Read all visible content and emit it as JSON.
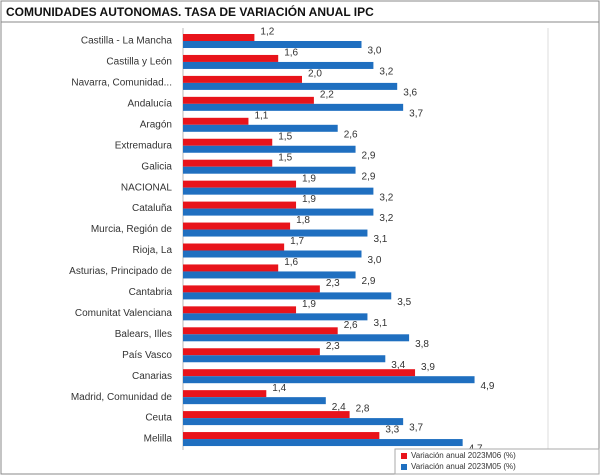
{
  "chart_data": {
    "type": "hbar",
    "title": "COMUNIDADES AUTONOMAS. TASA DE VARIACIÓN ANUAL IPC",
    "categories": [
      "Castilla - La Mancha",
      "Castilla y León",
      "Navarra, Comunidad...",
      "Andalucía",
      "Aragón",
      "Extremadura",
      "Galicia",
      "NACIONAL",
      "Cataluña",
      "Murcia, Región de",
      "Rioja, La",
      "Asturias, Principado de",
      "Cantabria",
      "Comunitat Valenciana",
      "Balears, Illes",
      "País Vasco",
      "Canarias",
      "Madrid, Comunidad de",
      "Ceuta",
      "Melilla"
    ],
    "series": [
      {
        "name": "Variación anual 2023M06 (%)",
        "color": "#e8141b",
        "values": [
          1.2,
          1.6,
          2.0,
          2.2,
          1.1,
          1.5,
          1.5,
          1.9,
          1.9,
          1.8,
          1.7,
          1.6,
          2.3,
          1.9,
          2.6,
          2.3,
          3.9,
          1.4,
          2.8,
          3.3
        ],
        "value_labels": [
          "1,2",
          "1,6",
          "2,0",
          "2,2",
          "1,1",
          "1,5",
          "1,5",
          "1,9",
          "1,9",
          "1,8",
          "1,7",
          "1,6",
          "2,3",
          "1,9",
          "2,6",
          "2,3",
          "3,9",
          "1,4",
          "2,8",
          "3,3"
        ]
      },
      {
        "name": "Variación anual 2023M05 (%)",
        "color": "#1f6fc0",
        "values": [
          3.0,
          3.2,
          3.6,
          3.7,
          2.6,
          2.9,
          2.9,
          3.2,
          3.2,
          3.1,
          3.0,
          2.9,
          3.5,
          3.1,
          3.8,
          3.4,
          4.9,
          2.4,
          3.7,
          4.7
        ],
        "value_labels": [
          "3,0",
          "3,2",
          "3,6",
          "3,7",
          "2,6",
          "2,9",
          "2,9",
          "3,2",
          "3,2",
          "3,1",
          "3,0",
          "2,9",
          "3,5",
          "3,1",
          "3,8",
          "3,4",
          "4,9",
          "2,4",
          "3,7",
          "4,7"
        ]
      }
    ],
    "xlim": [
      0,
      6
    ]
  }
}
